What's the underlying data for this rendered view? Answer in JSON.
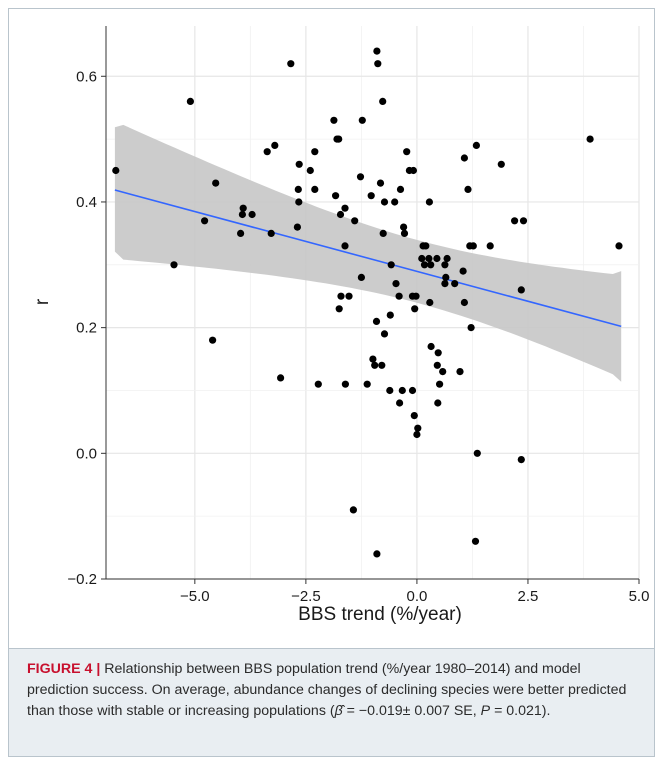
{
  "caption": {
    "label": "FIGURE 4 |",
    "text": "Relationship between BBS population trend (%/year 1980–2014) and model prediction success. On average, abundance changes of declining species were better predicted than those with stable or increasing populations",
    "beta_symbol": "β̂",
    "stats_1": " = −0.019± 0.007 SE, ",
    "p_symbol": "P",
    "stats_2": " = 0.021)."
  },
  "colors": {
    "points": "#000000",
    "fit_line": "#3366ff",
    "confidence_band": "#c7c7c7",
    "caption_label": "#c8102e",
    "caption_background": "#e9eef2"
  },
  "chart_data": {
    "type": "scatter",
    "title": "",
    "xlabel": "BBS trend (%/year)",
    "ylabel": "r",
    "xlim": [
      -7.0,
      5.0
    ],
    "ylim": [
      -0.2,
      0.68
    ],
    "x_ticks": [
      "-5.0",
      "-2.5",
      "0.0",
      "2.5",
      "5.0"
    ],
    "y_ticks": [
      "-0.2",
      "0.0",
      "0.2",
      "0.4",
      "0.6"
    ],
    "grid": true,
    "fit": {
      "method": "linear",
      "x_range": [
        -6.8,
        4.6
      ],
      "y_start": 0.419,
      "y_end": 0.202,
      "band_upper": [
        0.519,
        0.29
      ],
      "band_lower": [
        0.321,
        0.114
      ],
      "band_min_width_x": 0.05,
      "slope": -0.019
    },
    "points": [
      [
        -6.78,
        0.45
      ],
      [
        -5.1,
        0.56
      ],
      [
        -5.47,
        0.3
      ],
      [
        -4.78,
        0.37
      ],
      [
        -4.53,
        0.43
      ],
      [
        -4.6,
        0.18
      ],
      [
        -3.93,
        0.38
      ],
      [
        -3.97,
        0.35
      ],
      [
        -3.91,
        0.39
      ],
      [
        -3.71,
        0.38
      ],
      [
        -3.28,
        0.35
      ],
      [
        -3.37,
        0.48
      ],
      [
        -3.2,
        0.49
      ],
      [
        -3.07,
        0.12
      ],
      [
        -2.84,
        0.62
      ],
      [
        -2.65,
        0.46
      ],
      [
        -2.67,
        0.42
      ],
      [
        -2.66,
        0.4
      ],
      [
        -2.69,
        0.36
      ],
      [
        -2.4,
        0.45
      ],
      [
        -2.3,
        0.48
      ],
      [
        -2.3,
        0.42
      ],
      [
        -2.22,
        0.11
      ],
      [
        -1.87,
        0.53
      ],
      [
        -1.8,
        0.5
      ],
      [
        -1.76,
        0.5
      ],
      [
        -1.83,
        0.41
      ],
      [
        -1.72,
        0.38
      ],
      [
        -1.62,
        0.39
      ],
      [
        -1.62,
        0.33
      ],
      [
        -1.71,
        0.25
      ],
      [
        -1.75,
        0.23
      ],
      [
        -1.53,
        0.25
      ],
      [
        -1.61,
        0.11
      ],
      [
        -1.4,
        0.37
      ],
      [
        -1.23,
        0.53
      ],
      [
        -1.27,
        0.44
      ],
      [
        -1.25,
        0.28
      ],
      [
        -1.12,
        0.11
      ],
      [
        -1.03,
        0.41
      ],
      [
        -0.99,
        0.15
      ],
      [
        -0.95,
        0.14
      ],
      [
        -0.91,
        0.21
      ],
      [
        -0.9,
        0.64
      ],
      [
        -0.88,
        0.62
      ],
      [
        -0.82,
        0.43
      ],
      [
        -0.77,
        0.56
      ],
      [
        -0.73,
        0.4
      ],
      [
        -0.76,
        0.35
      ],
      [
        -0.79,
        0.14
      ],
      [
        -0.73,
        0.19
      ],
      [
        -0.58,
        0.3
      ],
      [
        -0.6,
        0.22
      ],
      [
        -0.61,
        0.1
      ],
      [
        -0.5,
        0.4
      ],
      [
        -0.47,
        0.27
      ],
      [
        -0.4,
        0.25
      ],
      [
        -0.39,
        0.08
      ],
      [
        -0.33,
        0.1
      ],
      [
        -0.37,
        0.42
      ],
      [
        -0.3,
        0.36
      ],
      [
        -0.28,
        0.35
      ],
      [
        -0.23,
        0.48
      ],
      [
        -0.17,
        0.45
      ],
      [
        -0.08,
        0.45
      ],
      [
        -0.1,
        0.25
      ],
      [
        -0.05,
        0.23
      ],
      [
        -0.02,
        0.25
      ],
      [
        -0.1,
        0.1
      ],
      [
        -0.06,
        0.06
      ],
      [
        0.0,
        0.03
      ],
      [
        0.02,
        0.04
      ],
      [
        0.14,
        0.33
      ],
      [
        0.11,
        0.31
      ],
      [
        0.17,
        0.3
      ],
      [
        0.2,
        0.33
      ],
      [
        0.28,
        0.4
      ],
      [
        0.27,
        0.31
      ],
      [
        0.31,
        0.3
      ],
      [
        0.29,
        0.24
      ],
      [
        0.32,
        0.17
      ],
      [
        0.45,
        0.31
      ],
      [
        0.48,
        0.16
      ],
      [
        0.46,
        0.14
      ],
      [
        0.51,
        0.11
      ],
      [
        0.47,
        0.08
      ],
      [
        0.63,
        0.3
      ],
      [
        0.65,
        0.28
      ],
      [
        0.63,
        0.27
      ],
      [
        0.68,
        0.31
      ],
      [
        0.58,
        0.13
      ],
      [
        0.85,
        0.27
      ],
      [
        0.97,
        0.13
      ],
      [
        1.04,
        0.29
      ],
      [
        1.07,
        0.47
      ],
      [
        1.07,
        0.24
      ],
      [
        1.15,
        0.42
      ],
      [
        1.19,
        0.33
      ],
      [
        1.27,
        0.33
      ],
      [
        1.22,
        0.2
      ],
      [
        1.34,
        0.49
      ],
      [
        1.36,
        0.0
      ],
      [
        1.32,
        -0.14
      ],
      [
        1.65,
        0.33
      ],
      [
        1.9,
        0.46
      ],
      [
        2.2,
        0.37
      ],
      [
        2.4,
        0.37
      ],
      [
        2.35,
        0.26
      ],
      [
        2.35,
        -0.01
      ],
      [
        3.9,
        0.5
      ],
      [
        4.55,
        0.33
      ],
      [
        -1.43,
        -0.09
      ],
      [
        -0.9,
        -0.16
      ]
    ]
  }
}
